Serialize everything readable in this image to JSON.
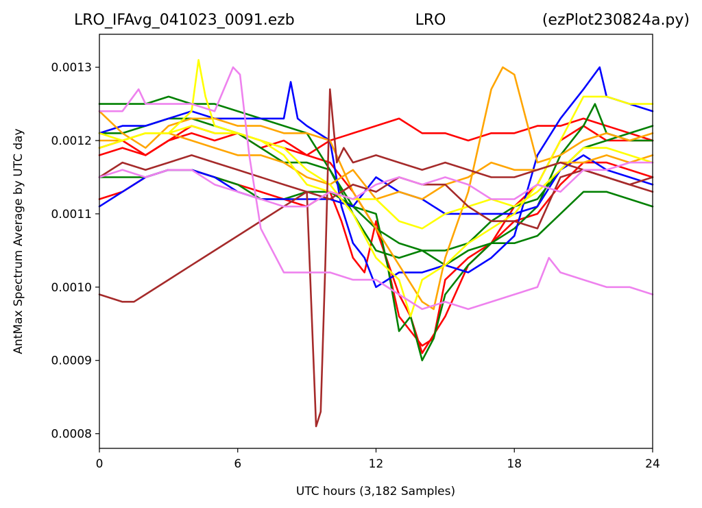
{
  "title": {
    "left": "LRO_IFAvg_041023_0091.ezb",
    "center": "LRO",
    "right": "(ezPlot230824a.py)"
  },
  "chart_data": {
    "type": "line",
    "title": "LRO_IFAvg_041023_0091.ezb          LRO          (ezPlot230824a.py)",
    "xlabel": "UTC hours  (3,182 Samples)",
    "ylabel": "AntMax Spectrum Average by UTC day",
    "xlim": [
      0,
      24
    ],
    "ylim": [
      0.00078,
      0.001345
    ],
    "xticks": [
      0,
      6,
      12,
      18,
      24
    ],
    "xtick_labels": [
      "0",
      "6",
      "12",
      "18",
      "24"
    ],
    "yticks": [
      0.0008,
      0.0009,
      0.001,
      0.0011,
      0.0012,
      0.0013
    ],
    "ytick_labels": [
      "0.0008",
      "0.0009",
      "0.0010",
      "0.0011",
      "0.0012",
      "0.0013"
    ],
    "grid": false,
    "legend": "none",
    "series": [
      {
        "color": "#ff0000",
        "x": [
          0,
          1,
          2,
          3,
          4,
          5,
          6,
          7,
          8,
          9,
          9.5,
          10,
          10.5,
          11,
          11.5,
          12,
          12.5,
          13,
          13.5,
          14,
          14.5,
          15,
          16,
          17,
          18,
          19,
          20,
          21,
          22,
          23,
          24
        ],
        "y": [
          0.00112,
          0.00113,
          0.00115,
          0.00116,
          0.00116,
          0.00115,
          0.00114,
          0.00113,
          0.00112,
          0.00111,
          0.00112,
          0.00113,
          0.00109,
          0.00104,
          0.00102,
          0.00109,
          0.00103,
          0.00096,
          0.00094,
          0.00092,
          0.00093,
          0.00101,
          0.00104,
          0.00106,
          0.00109,
          0.0011,
          0.00114,
          0.00117,
          0.00117,
          0.00116,
          0.00115
        ]
      },
      {
        "color": "#ff0000",
        "x": [
          0,
          1,
          2,
          3,
          4,
          5,
          6,
          7,
          8,
          9,
          10,
          11,
          12,
          13,
          14,
          15,
          16,
          17,
          18,
          19,
          20,
          21,
          22,
          23,
          24
        ],
        "y": [
          0.00118,
          0.00119,
          0.00118,
          0.0012,
          0.00121,
          0.0012,
          0.00121,
          0.0012,
          0.00119,
          0.00118,
          0.0012,
          0.00121,
          0.00122,
          0.00123,
          0.00121,
          0.00121,
          0.0012,
          0.00121,
          0.00121,
          0.00122,
          0.00122,
          0.00123,
          0.00122,
          0.00121,
          0.0012
        ]
      },
      {
        "color": "#ff0000",
        "x": [
          0,
          1,
          2,
          3,
          4,
          5,
          6,
          7,
          8,
          9,
          10,
          11,
          12,
          13,
          13.5,
          14,
          15,
          16,
          17,
          18,
          19,
          20,
          21,
          22,
          23,
          24
        ],
        "y": [
          0.00119,
          0.0012,
          0.00118,
          0.0012,
          0.00122,
          0.00121,
          0.00121,
          0.00119,
          0.0012,
          0.00118,
          0.00117,
          0.00113,
          0.00108,
          0.00099,
          0.00096,
          0.00091,
          0.00096,
          0.00103,
          0.00106,
          0.00111,
          0.00114,
          0.0012,
          0.00122,
          0.0012,
          0.0012,
          0.0012
        ]
      },
      {
        "color": "#008000",
        "x": [
          0,
          1,
          2,
          3,
          4,
          5,
          6,
          7,
          8,
          9,
          10,
          11,
          12,
          13,
          14,
          15,
          16,
          17,
          18,
          19,
          20,
          21,
          22,
          23,
          24
        ],
        "y": [
          0.00125,
          0.00125,
          0.00125,
          0.00126,
          0.00125,
          0.00125,
          0.00124,
          0.00123,
          0.00122,
          0.00121,
          0.00116,
          0.0011,
          0.00105,
          0.00104,
          0.00105,
          0.00105,
          0.00106,
          0.00109,
          0.00111,
          0.00112,
          0.00116,
          0.00119,
          0.0012,
          0.00121,
          0.00122
        ]
      },
      {
        "color": "#008000",
        "x": [
          0,
          1,
          2,
          3,
          4,
          5,
          6,
          7,
          8,
          9,
          10,
          11,
          12,
          13,
          14,
          15,
          16,
          17,
          18,
          19,
          20,
          21,
          22,
          23,
          24
        ],
        "y": [
          0.00115,
          0.00115,
          0.00115,
          0.00116,
          0.00116,
          0.00115,
          0.00114,
          0.00112,
          0.00112,
          0.00113,
          0.00113,
          0.00111,
          0.00108,
          0.00106,
          0.00105,
          0.00103,
          0.00105,
          0.00106,
          0.00106,
          0.00107,
          0.0011,
          0.00113,
          0.00113,
          0.00112,
          0.00111
        ]
      },
      {
        "color": "#008000",
        "x": [
          0,
          1,
          2,
          3,
          4,
          5,
          6,
          7,
          8,
          9,
          10,
          11,
          12,
          12.5,
          13,
          13.5,
          14,
          14.5,
          15,
          16,
          17,
          18,
          19,
          20,
          21,
          21.5,
          22,
          23,
          24
        ],
        "y": [
          0.00121,
          0.00121,
          0.00122,
          0.00123,
          0.00123,
          0.00122,
          0.00121,
          0.00119,
          0.00117,
          0.00117,
          0.00116,
          0.00111,
          0.0011,
          0.00103,
          0.00094,
          0.00096,
          0.0009,
          0.00093,
          0.00099,
          0.00103,
          0.00106,
          0.00108,
          0.00111,
          0.00118,
          0.00122,
          0.00125,
          0.00121,
          0.0012,
          0.0012
        ]
      },
      {
        "color": "#0000ff",
        "x": [
          0,
          1,
          2,
          3,
          4,
          5,
          6,
          7,
          8,
          8.3,
          8.6,
          9,
          10,
          10.5,
          11,
          11.5,
          12,
          12.5,
          13,
          14,
          15,
          16,
          17,
          18,
          19,
          20,
          21,
          21.7,
          22,
          23,
          24
        ],
        "y": [
          0.00121,
          0.00122,
          0.00122,
          0.00123,
          0.00124,
          0.00123,
          0.00123,
          0.00123,
          0.00123,
          0.00128,
          0.00123,
          0.00122,
          0.0012,
          0.00111,
          0.00106,
          0.00104,
          0.001,
          0.00101,
          0.00102,
          0.00102,
          0.00103,
          0.00102,
          0.00104,
          0.00107,
          0.00118,
          0.00123,
          0.00127,
          0.0013,
          0.00126,
          0.00125,
          0.00124
        ]
      },
      {
        "color": "#0000ff",
        "x": [
          0,
          1,
          2,
          3,
          4,
          5,
          6,
          7,
          8,
          9,
          10,
          11,
          12,
          13,
          14,
          15,
          16,
          17,
          18,
          19,
          20,
          21,
          22,
          23,
          24
        ],
        "y": [
          0.00111,
          0.00113,
          0.00115,
          0.00116,
          0.00116,
          0.00115,
          0.00113,
          0.00112,
          0.00112,
          0.00112,
          0.00112,
          0.00111,
          0.00115,
          0.00113,
          0.00112,
          0.0011,
          0.0011,
          0.0011,
          0.0011,
          0.00111,
          0.00116,
          0.00118,
          0.00116,
          0.00115,
          0.00114
        ]
      },
      {
        "color": "#ffa500",
        "x": [
          0,
          1,
          2,
          3,
          4,
          5,
          6,
          7,
          8,
          9,
          10,
          11,
          12,
          13,
          14,
          14.5,
          15,
          16,
          17,
          17.5,
          18,
          19,
          20,
          21,
          22,
          23,
          24
        ],
        "y": [
          0.00124,
          0.00121,
          0.00119,
          0.00122,
          0.00123,
          0.00123,
          0.00122,
          0.00122,
          0.00121,
          0.00121,
          0.0012,
          0.00113,
          0.00108,
          0.00103,
          0.00098,
          0.00097,
          0.00104,
          0.00113,
          0.00127,
          0.0013,
          0.00129,
          0.00117,
          0.00118,
          0.0012,
          0.00121,
          0.0012,
          0.00121
        ]
      },
      {
        "color": "#ffa500",
        "x": [
          0,
          1,
          2,
          3,
          4,
          5,
          6,
          7,
          8,
          9,
          10,
          11,
          12,
          13,
          14,
          15,
          16,
          17,
          18,
          19,
          20,
          21,
          22,
          23,
          24
        ],
        "y": [
          0.0012,
          0.0012,
          0.00121,
          0.00121,
          0.0012,
          0.00119,
          0.00118,
          0.00118,
          0.00117,
          0.00115,
          0.00114,
          0.00116,
          0.00112,
          0.00113,
          0.00112,
          0.00114,
          0.00115,
          0.00117,
          0.00116,
          0.00116,
          0.00117,
          0.00117,
          0.00118,
          0.00117,
          0.00118
        ]
      },
      {
        "color": "#ffff00",
        "x": [
          0,
          1,
          2,
          3,
          4,
          4.3,
          4.6,
          5,
          6,
          7,
          8,
          9,
          10,
          11,
          12,
          13,
          13.5,
          14,
          15,
          16,
          17,
          18,
          19,
          20,
          21,
          22,
          23,
          24
        ],
        "y": [
          0.00121,
          0.0012,
          0.00121,
          0.00121,
          0.00124,
          0.00131,
          0.00126,
          0.00122,
          0.00121,
          0.0012,
          0.00119,
          0.00116,
          0.00114,
          0.0011,
          0.00104,
          0.00101,
          0.00096,
          0.00101,
          0.00103,
          0.00106,
          0.00108,
          0.0011,
          0.00114,
          0.0012,
          0.00126,
          0.00126,
          0.00125,
          0.00125
        ]
      },
      {
        "color": "#ffff00",
        "x": [
          0,
          1,
          2,
          3,
          4,
          5,
          6,
          7,
          8,
          9,
          10,
          11,
          12,
          13,
          14,
          15,
          16,
          17,
          18,
          19,
          20,
          21,
          22,
          23,
          24
        ],
        "y": [
          0.00119,
          0.0012,
          0.00121,
          0.00121,
          0.00122,
          0.00121,
          0.00121,
          0.0012,
          0.00118,
          0.00114,
          0.00113,
          0.00112,
          0.00112,
          0.00109,
          0.00108,
          0.0011,
          0.00111,
          0.00112,
          0.00111,
          0.00113,
          0.00116,
          0.00119,
          0.00119,
          0.00118,
          0.00117
        ]
      },
      {
        "color": "#a52a2a",
        "x": [
          0,
          1,
          1.5,
          2,
          3,
          4,
          5,
          6,
          7,
          8,
          9,
          9.4,
          9.6,
          9.8,
          10,
          10.3,
          10.6,
          11,
          12,
          13,
          14,
          15,
          16,
          17,
          18,
          19,
          20,
          21,
          22,
          23,
          24
        ],
        "y": [
          0.00099,
          0.00098,
          0.00098,
          0.00099,
          0.00101,
          0.00103,
          0.00105,
          0.00107,
          0.00109,
          0.00111,
          0.00113,
          0.00081,
          0.00083,
          0.00103,
          0.00127,
          0.00117,
          0.00119,
          0.00117,
          0.00118,
          0.00117,
          0.00116,
          0.00117,
          0.00116,
          0.00115,
          0.00115,
          0.00116,
          0.00117,
          0.00116,
          0.00115,
          0.00114,
          0.00115
        ]
      },
      {
        "color": "#a52a2a",
        "x": [
          0,
          1,
          2,
          3,
          4,
          5,
          6,
          7,
          8,
          9,
          10,
          11,
          12,
          13,
          14,
          15,
          16,
          17,
          18,
          19,
          20,
          21,
          22,
          23,
          24
        ],
        "y": [
          0.00115,
          0.00117,
          0.00116,
          0.00117,
          0.00118,
          0.00117,
          0.00116,
          0.00115,
          0.00114,
          0.00113,
          0.00112,
          0.00114,
          0.00113,
          0.00115,
          0.00114,
          0.00114,
          0.00111,
          0.00109,
          0.00109,
          0.00108,
          0.00115,
          0.00116,
          0.00115,
          0.00114,
          0.00113
        ]
      },
      {
        "color": "#ee82ee",
        "x": [
          0,
          1,
          1.7,
          2,
          3,
          4,
          5,
          5.8,
          6.1,
          6.5,
          7,
          8,
          9,
          10,
          11,
          12,
          13,
          14,
          15,
          16,
          17,
          18,
          19,
          19.5,
          20,
          21,
          22,
          23,
          24
        ],
        "y": [
          0.00124,
          0.00124,
          0.00127,
          0.00125,
          0.00125,
          0.00125,
          0.00124,
          0.0013,
          0.00129,
          0.00118,
          0.00108,
          0.00102,
          0.00102,
          0.00102,
          0.00101,
          0.00101,
          0.00099,
          0.00097,
          0.00098,
          0.00097,
          0.00098,
          0.00099,
          0.001,
          0.00104,
          0.00102,
          0.00101,
          0.001,
          0.001,
          0.00099
        ]
      },
      {
        "color": "#ee82ee",
        "x": [
          0,
          1,
          2,
          3,
          4,
          5,
          6,
          7,
          8,
          9,
          10,
          11,
          12,
          13,
          14,
          15,
          16,
          17,
          18,
          19,
          20,
          21,
          22,
          23,
          24
        ],
        "y": [
          0.00115,
          0.00116,
          0.00115,
          0.00116,
          0.00116,
          0.00114,
          0.00113,
          0.00112,
          0.00111,
          0.00111,
          0.00113,
          0.00112,
          0.00114,
          0.00115,
          0.00114,
          0.00115,
          0.00114,
          0.00112,
          0.00112,
          0.00114,
          0.00113,
          0.00116,
          0.00116,
          0.00117,
          0.00117
        ]
      }
    ]
  }
}
